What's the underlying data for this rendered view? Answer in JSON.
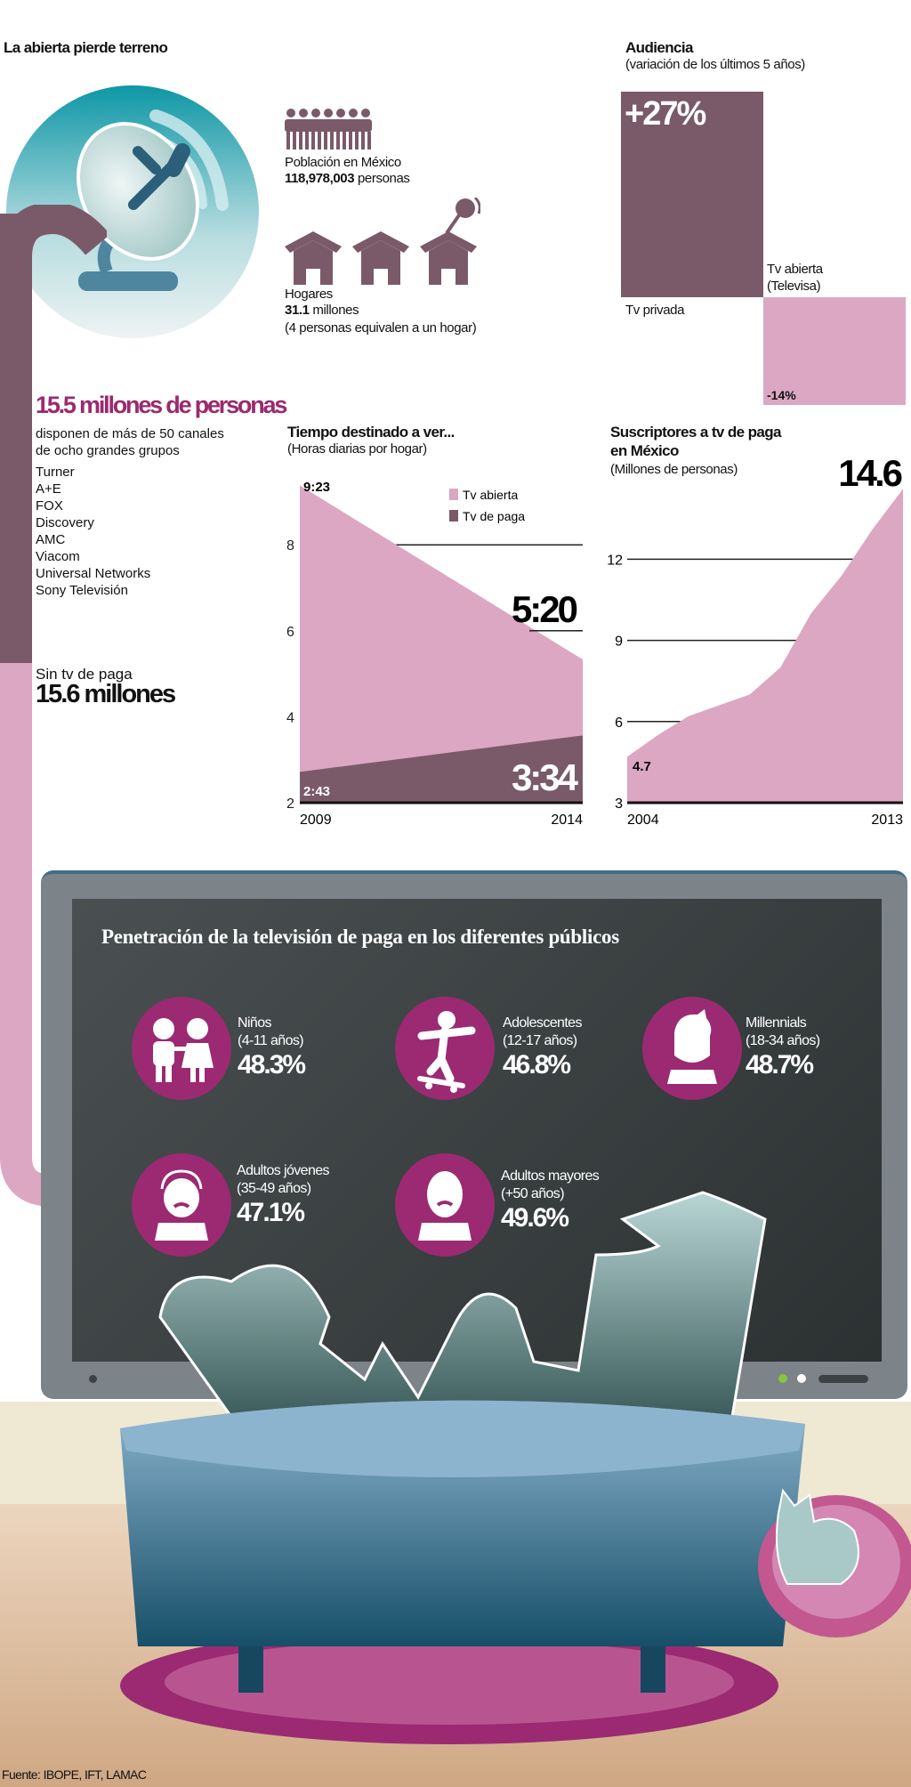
{
  "header": {
    "title": "La abierta pierde terreno"
  },
  "population": {
    "label": "Población en México",
    "value": "118,978,003",
    "unit": "personas"
  },
  "households": {
    "label": "Hogares",
    "value": "31.1",
    "unit": "millones",
    "note": "(4 personas equivalen a un hogar)"
  },
  "audience": {
    "title": "Audiencia",
    "subtitle": "(variación de los últimos 5 años)",
    "private_value": "+27%",
    "private_label": "Tv privada",
    "open_value": "-14%",
    "open_label_1": "Tv abierta",
    "open_label_2": "(Televisa)",
    "colors": {
      "private": "#7a5a69",
      "open": "#dba7c2"
    }
  },
  "paytv": {
    "headline": "15.5 millones de personas",
    "desc_1": "disponen de más de 50 canales",
    "desc_2": "de ocho grandes grupos",
    "groups": [
      "Turner",
      "A+E",
      "FOX",
      "Discovery",
      "AMC",
      "Viacom",
      "Universal Networks",
      "Sony Televisión"
    ],
    "without_label": "Sin tv de paga",
    "without_value": "15.6 millones"
  },
  "chart_data": [
    {
      "type": "area",
      "title": "Tiempo destinado a ver...",
      "subtitle": "(Horas diarias por hogar)",
      "x": [
        2009,
        2014
      ],
      "xticks": [
        "2009",
        "2014"
      ],
      "yticks": [
        "2",
        "4",
        "6",
        "8"
      ],
      "ylim": [
        2,
        9.5
      ],
      "legend_position": "top-right",
      "series": [
        {
          "name": "Tv abierta",
          "values": [
            9.383,
            5.333
          ],
          "labels": [
            "9:23",
            "5:20"
          ],
          "color": "#dba7c2"
        },
        {
          "name": "Tv de paga",
          "values": [
            2.717,
            3.567
          ],
          "labels": [
            "2:43",
            "3:34"
          ],
          "color": "#7a5a69"
        }
      ]
    },
    {
      "type": "area",
      "title_1": "Suscriptores a tv de paga",
      "title_2": "en México",
      "subtitle": "(Millones de personas)",
      "x": [
        2004,
        2005,
        2006,
        2007,
        2008,
        2009,
        2010,
        2011,
        2012,
        2013
      ],
      "values": [
        4.7,
        5.5,
        6.2,
        6.6,
        7.0,
        8.0,
        10.0,
        11.4,
        13.1,
        14.6
      ],
      "start_label": "4.7",
      "end_label": "14.6",
      "xticks": [
        "2004",
        "2013"
      ],
      "yticks": [
        "3",
        "6",
        "9",
        "12"
      ],
      "ylim": [
        3,
        15
      ],
      "color": "#dba7c2"
    }
  ],
  "penetration": {
    "title": "Penetración de la televisión de paga en los diferentes públicos",
    "groups": [
      {
        "name": "Niños",
        "range": "(4-11 años)",
        "value": "48.3%",
        "icon": "children-icon"
      },
      {
        "name": "Adolescentes",
        "range": "(12-17 años)",
        "value": "46.8%",
        "icon": "skateboarder-icon"
      },
      {
        "name": "Millennials",
        "range": "(18-34 años)",
        "value": "48.7%",
        "icon": "young-man-icon"
      },
      {
        "name": "Adultos jóvenes",
        "range": "(35-49 años)",
        "value": "47.1%",
        "icon": "adult-man-icon"
      },
      {
        "name": "Adultos mayores",
        "range": "(+50 años)",
        "value": "49.6%",
        "icon": "senior-man-icon"
      }
    ]
  },
  "source": "Fuente: IBOPE, IFT, LAMAC"
}
